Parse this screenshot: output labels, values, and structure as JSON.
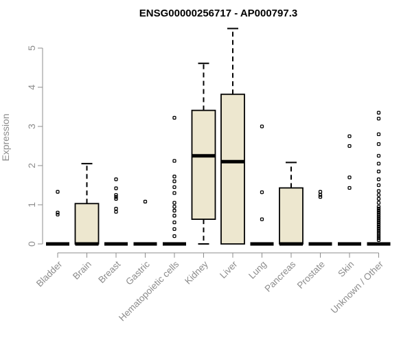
{
  "chart_data": {
    "type": "box",
    "title": "ENSG00000256717 - AP000797.3",
    "xlabel": "",
    "ylabel": "Expression",
    "ylim": [
      0,
      5.5
    ],
    "yticks": [
      0,
      1,
      2,
      3,
      4,
      5
    ],
    "grid": false,
    "legend": "none",
    "colors": {
      "box_fill": "#ede7cf",
      "stroke": "#000000",
      "axis_text": "#8c8c8c",
      "axis_line": "#8c8c8c"
    },
    "categories": [
      "Bladder",
      "Brain",
      "Breast",
      "Gastric",
      "Hematopoietic cells",
      "Kidney",
      "Liver",
      "Lung",
      "Pancreas",
      "Prostate",
      "Skin",
      "Unknown / Other"
    ],
    "boxes": [
      {
        "category": "Bladder",
        "q1": 0,
        "median": 0,
        "q3": 0,
        "whisker_low": 0,
        "whisker_high": 0,
        "outliers": [
          1.33,
          0.8,
          0.75
        ]
      },
      {
        "category": "Brain",
        "q1": 0,
        "median": 0,
        "q3": 1.03,
        "whisker_low": 0,
        "whisker_high": 2.05,
        "outliers": []
      },
      {
        "category": "Breast",
        "q1": 0,
        "median": 0,
        "q3": 0,
        "whisker_low": 0,
        "whisker_high": 0,
        "outliers": [
          1.65,
          1.42,
          1.25,
          1.2,
          1.15,
          0.9,
          0.82
        ]
      },
      {
        "category": "Gastric",
        "q1": 0,
        "median": 0,
        "q3": 0,
        "whisker_low": 0,
        "whisker_high": 0,
        "outliers": [
          1.08
        ]
      },
      {
        "category": "Hematopoietic cells",
        "q1": 0,
        "median": 0,
        "q3": 0,
        "whisker_low": 0,
        "whisker_high": 0,
        "outliers": [
          3.22,
          2.12,
          1.72,
          1.6,
          1.45,
          1.3,
          1.05,
          0.95,
          0.85,
          0.72,
          0.55,
          0.38,
          0.2
        ]
      },
      {
        "category": "Kidney",
        "q1": 0.63,
        "median": 2.25,
        "q3": 3.41,
        "whisker_low": 0,
        "whisker_high": 4.61,
        "outliers": []
      },
      {
        "category": "Liver",
        "q1": 0,
        "median": 2.1,
        "q3": 3.82,
        "whisker_low": 0,
        "whisker_high": 5.5,
        "outliers": []
      },
      {
        "category": "Lung",
        "q1": 0,
        "median": 0,
        "q3": 0,
        "whisker_low": 0,
        "whisker_high": 0,
        "outliers": [
          3.0,
          1.32,
          0.63
        ]
      },
      {
        "category": "Pancreas",
        "q1": 0,
        "median": 0,
        "q3": 1.43,
        "whisker_low": 0,
        "whisker_high": 2.08,
        "outliers": []
      },
      {
        "category": "Prostate",
        "q1": 0,
        "median": 0,
        "q3": 0,
        "whisker_low": 0,
        "whisker_high": 0,
        "outliers": [
          1.33,
          1.25,
          1.2
        ]
      },
      {
        "category": "Skin",
        "q1": 0,
        "median": 0,
        "q3": 0,
        "whisker_low": 0,
        "whisker_high": 0,
        "outliers": [
          2.75,
          2.5,
          1.7,
          1.43
        ]
      },
      {
        "category": "Unknown / Other",
        "q1": 0,
        "median": 0,
        "q3": 0,
        "whisker_low": 0,
        "whisker_high": 0,
        "outliers": [
          3.35,
          3.2,
          2.8,
          2.55,
          2.25,
          2.05,
          1.85,
          1.65,
          1.5,
          1.35,
          1.25,
          1.15,
          1.05,
          0.95,
          0.9,
          0.85,
          0.8,
          0.75,
          0.7,
          0.65,
          0.6,
          0.55,
          0.5,
          0.45,
          0.4,
          0.35,
          0.3,
          0.25,
          0.2,
          0.15,
          0.1
        ]
      }
    ]
  }
}
